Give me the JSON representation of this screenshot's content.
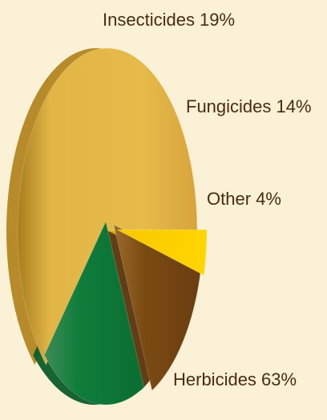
{
  "chart_data": {
    "type": "pie",
    "slices": [
      {
        "label": "Herbicides 63%",
        "value": 63,
        "color": "#e0b443"
      },
      {
        "label": "Insecticides 19%",
        "value": 19,
        "color": "#0d7a38"
      },
      {
        "label": "Fungicides 14%",
        "value": 14,
        "color": "#7a4b12"
      },
      {
        "label": "Other 4%",
        "value": 4,
        "color": "#ffd400"
      }
    ]
  }
}
